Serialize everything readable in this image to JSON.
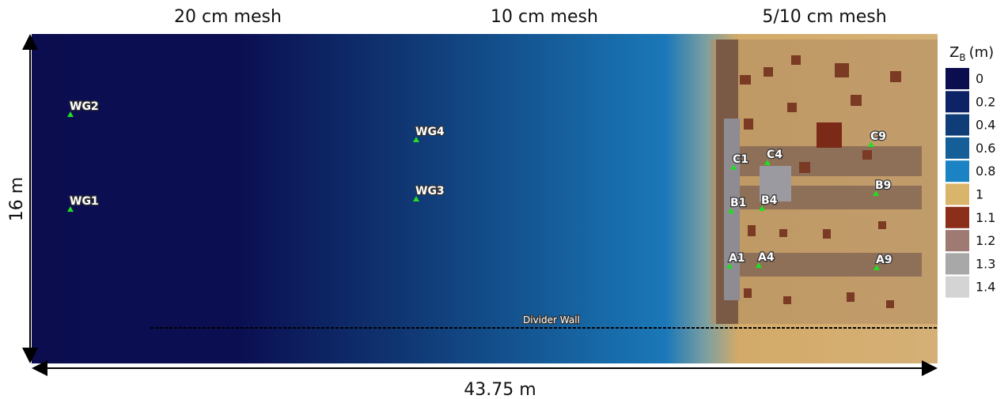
{
  "mesh_labels": [
    "20 cm mesh",
    "10 cm mesh",
    "5/10 cm mesh"
  ],
  "dimensions": {
    "height": "16 m",
    "width": "43.75 m"
  },
  "divider_label": "Divider Wall",
  "gauges": [
    {
      "label": "WG2"
    },
    {
      "label": "WG1"
    },
    {
      "label": "WG4"
    },
    {
      "label": "WG3"
    },
    {
      "label": "C1"
    },
    {
      "label": "C4"
    },
    {
      "label": "C9"
    },
    {
      "label": "B1"
    },
    {
      "label": "B4"
    },
    {
      "label": "B9"
    },
    {
      "label": "A1"
    },
    {
      "label": "A4"
    },
    {
      "label": "A9"
    }
  ],
  "legend": {
    "title": "Z",
    "title_sub": "B",
    "title_unit": "(m)",
    "entries": [
      {
        "label": "0",
        "color": "#0b0d4f"
      },
      {
        "label": "0.2",
        "color": "#0e2366"
      },
      {
        "label": "0.4",
        "color": "#0f3d78"
      },
      {
        "label": "0.6",
        "color": "#145f98"
      },
      {
        "label": "0.8",
        "color": "#1b82c4"
      },
      {
        "label": "1",
        "color": "#d9b46b"
      },
      {
        "label": "1.1",
        "color": "#8c2f1a"
      },
      {
        "label": "1.2",
        "color": "#9e7a73"
      },
      {
        "label": "1.3",
        "color": "#a8a8a8"
      },
      {
        "label": "1.4",
        "color": "#d4d4d4"
      }
    ]
  }
}
